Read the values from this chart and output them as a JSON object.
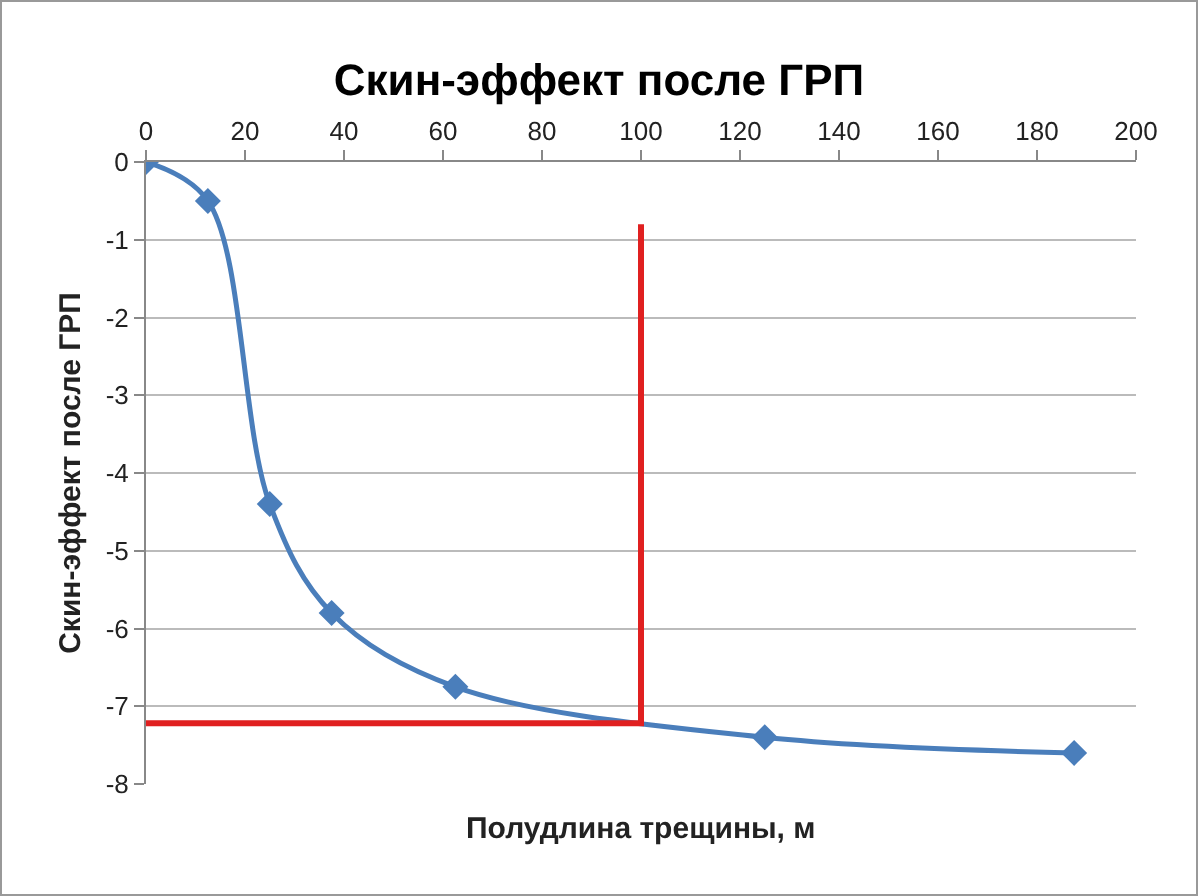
{
  "chart_data": {
    "type": "line",
    "title": "Скин-эффект после ГРП",
    "xlabel": "Полудлина трещины, м",
    "ylabel": "Скин-эффект после ГРП",
    "series": [
      {
        "color": "#4a7ebb",
        "x": [
          0,
          12.5,
          25,
          37.5,
          62.5,
          125,
          187.5
        ],
        "values": [
          0,
          -0.5,
          -4.4,
          -5.8,
          -6.75,
          -7.4,
          -7.6
        ],
        "marker": "diamond"
      },
      {
        "color": "#e02020",
        "x": [
          0,
          100,
          100
        ],
        "values": [
          -7.22,
          -7.22,
          -0.8
        ],
        "marker": "none"
      }
    ],
    "xlim": [
      0,
      200
    ],
    "xticks": [
      0,
      20,
      40,
      60,
      80,
      100,
      120,
      140,
      160,
      180,
      200
    ],
    "ylim": [
      -8,
      0
    ],
    "yticks": [
      -8,
      -7,
      -6,
      -5,
      -4,
      -3,
      -2,
      -1,
      0
    ],
    "grid": "y"
  }
}
